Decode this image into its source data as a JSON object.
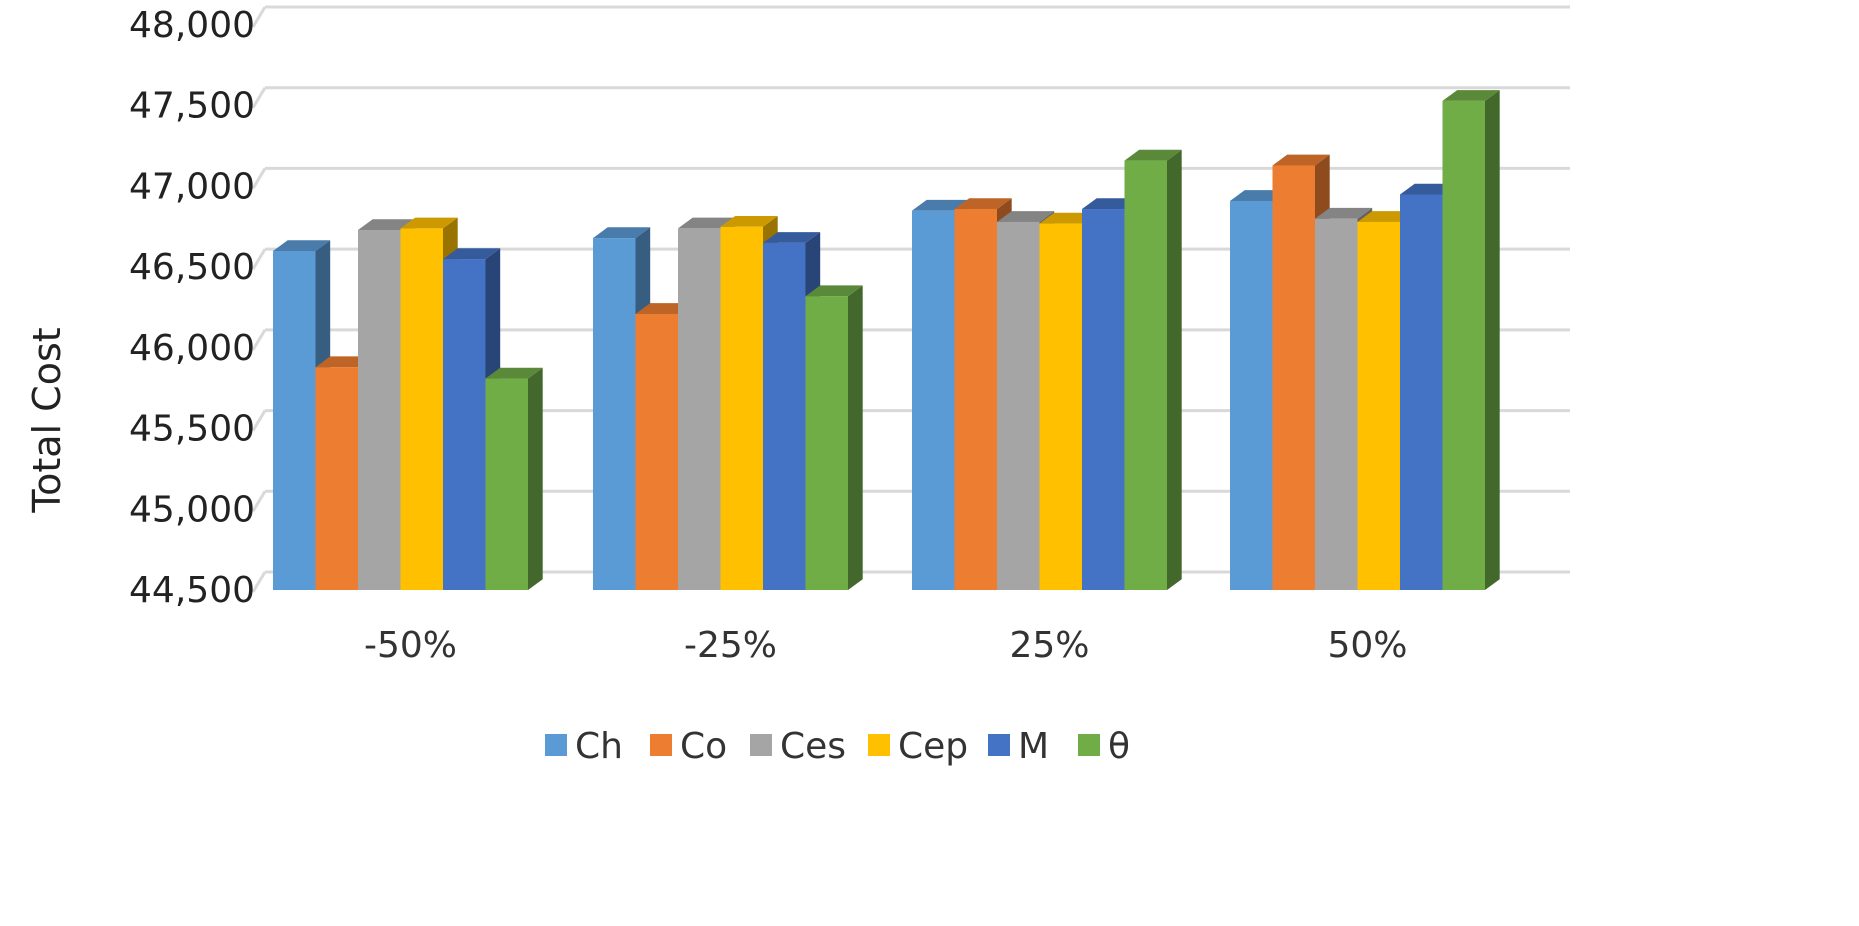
{
  "chart_data": {
    "type": "bar",
    "title": "",
    "xlabel": "",
    "ylabel": "Total  Cost",
    "categories": [
      "-50%",
      "-25%",
      "25%",
      "50%"
    ],
    "ylim": [
      44500,
      48000
    ],
    "yticks": [
      44500,
      45000,
      45500,
      46000,
      46500,
      47000,
      47500,
      48000
    ],
    "ytick_labels": [
      "44,500",
      "45,000",
      "45,500",
      "46,000",
      "46,500",
      "47,000",
      "47,500",
      "48,000"
    ],
    "grid": true,
    "legend_position": "bottom",
    "series": [
      {
        "name": "Ch",
        "color": "#5B9BD5",
        "values": [
          46600,
          46680,
          46850,
          46910
        ]
      },
      {
        "name": "Co",
        "color": "#ED7D31",
        "values": [
          45880,
          46210,
          46860,
          47130
        ]
      },
      {
        "name": "Ces",
        "color": "#A5A5A5",
        "values": [
          46730,
          46740,
          46780,
          46800
        ]
      },
      {
        "name": "Cep",
        "color": "#FFC000",
        "values": [
          46740,
          46750,
          46770,
          46780
        ]
      },
      {
        "name": "M",
        "color": "#4472C4",
        "values": [
          46550,
          46650,
          46860,
          46950
        ]
      },
      {
        "name": "θ",
        "color": "#70AD47",
        "values": [
          45810,
          46320,
          47160,
          47530
        ]
      }
    ]
  }
}
